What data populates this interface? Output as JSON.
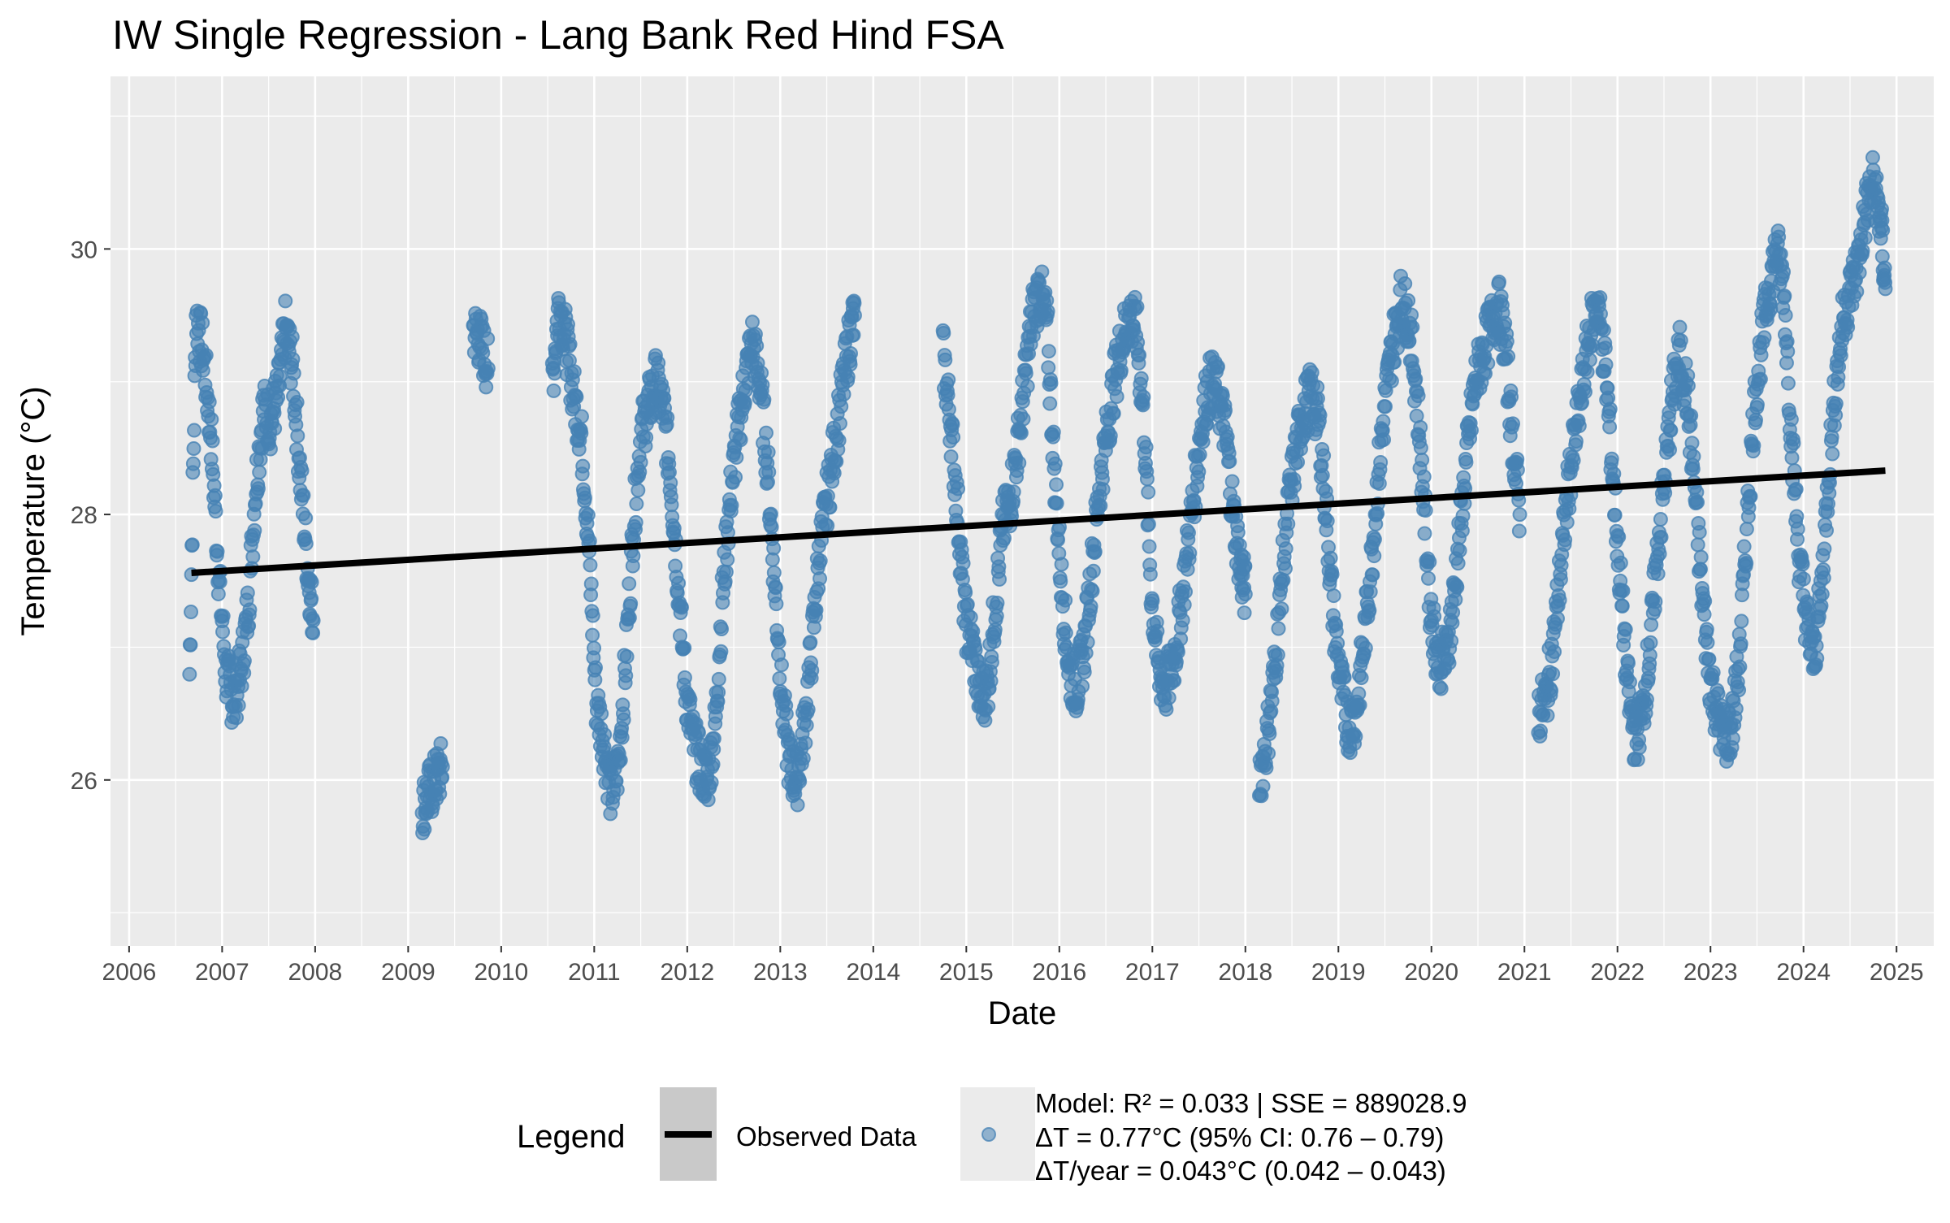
{
  "chart_data": {
    "type": "scatter",
    "title": "IW Single Regression - Lang Bank Red Hind FSA",
    "xlabel": "Date",
    "ylabel": "Temperature (°C)",
    "xlim": [
      2005.8,
      2025.4
    ],
    "ylim": [
      24.75,
      31.3
    ],
    "x_ticks": [
      "2006",
      "2007",
      "2008",
      "2009",
      "2010",
      "2011",
      "2012",
      "2013",
      "2014",
      "2015",
      "2016",
      "2017",
      "2018",
      "2019",
      "2020",
      "2021",
      "2022",
      "2023",
      "2024",
      "2025"
    ],
    "y_ticks": [
      "26",
      "28",
      "30"
    ],
    "grid": true,
    "legend_position": "bottom",
    "colors": {
      "points": "#4682B4",
      "trend": "#000000",
      "panel": "#EBEBEB",
      "grid": "#FFFFFF"
    },
    "trend_line": {
      "x": [
        2006.67,
        2024.88
      ],
      "y": [
        27.56,
        28.33
      ]
    },
    "series": [
      {
        "name": "Observed Data",
        "kind": "daily-temperature-trace",
        "segments": [
          {
            "x": [
              2006.65,
              2006.72,
              2006.8,
              2006.88,
              2006.96,
              2007.04,
              2007.12,
              2007.2,
              2007.28,
              2007.36,
              2007.44,
              2007.52,
              2007.6,
              2007.68,
              2007.76,
              2007.84,
              2007.92,
              2007.98
            ],
            "y": [
              26.8,
              29.5,
              29.2,
              28.6,
              27.6,
              26.8,
              26.6,
              26.8,
              27.3,
              28.2,
              28.8,
              28.7,
              28.9,
              29.4,
              29.1,
              28.3,
              27.6,
              27.2
            ]
          },
          {
            "x": [
              2009.15,
              2009.22,
              2009.3,
              2009.37
            ],
            "y": [
              25.8,
              25.9,
              26.0,
              26.1
            ]
          },
          {
            "x": [
              2009.7,
              2009.78,
              2009.86
            ],
            "y": [
              29.4,
              29.3,
              29.1
            ]
          },
          {
            "x": [
              2010.55,
              2010.62,
              2010.7,
              2010.78,
              2010.86,
              2010.94,
              2011.02,
              2011.1,
              2011.18,
              2011.26,
              2011.34,
              2011.42,
              2011.5,
              2011.58,
              2011.66,
              2011.74,
              2011.82,
              2011.9,
              2011.98,
              2012.06,
              2012.14,
              2012.22,
              2012.3,
              2012.38,
              2012.46,
              2012.54,
              2012.62,
              2012.7,
              2012.78,
              2012.86,
              2012.94,
              2013.02,
              2013.1,
              2013.18,
              2013.26,
              2013.34,
              2013.42,
              2013.5,
              2013.58,
              2013.66,
              2013.74,
              2013.8
            ],
            "y": [
              29.0,
              29.6,
              29.3,
              28.9,
              28.6,
              27.8,
              26.6,
              26.3,
              25.9,
              26.1,
              26.9,
              27.9,
              28.6,
              28.8,
              29.0,
              28.8,
              28.3,
              27.5,
              26.7,
              26.3,
              26.1,
              26.0,
              26.4,
              27.4,
              28.1,
              28.6,
              29.0,
              29.3,
              29.0,
              28.4,
              27.5,
              26.6,
              26.1,
              26.0,
              26.4,
              27.0,
              27.7,
              28.1,
              28.5,
              28.9,
              29.3,
              29.5
            ]
          },
          {
            "x": [
              2014.75,
              2014.83,
              2014.91,
              2014.99,
              2015.07,
              2015.15,
              2015.23,
              2015.31,
              2015.39,
              2015.47,
              2015.55,
              2015.63,
              2015.71,
              2015.79,
              2015.87,
              2015.95,
              2016.03,
              2016.11,
              2016.19,
              2016.27,
              2016.35,
              2016.43,
              2016.51,
              2016.59,
              2016.67,
              2016.75,
              2016.83,
              2016.91,
              2016.99,
              2017.07,
              2017.15,
              2017.23,
              2017.31,
              2017.39,
              2017.47,
              2017.55,
              2017.63,
              2017.71,
              2017.79,
              2017.87,
              2017.95,
              2018.0
            ],
            "y": [
              29.2,
              28.7,
              28.0,
              27.2,
              27.0,
              26.6,
              26.7,
              27.3,
              27.9,
              28.1,
              28.5,
              29.0,
              29.5,
              29.7,
              29.4,
              28.3,
              27.4,
              26.8,
              26.7,
              27.0,
              27.6,
              28.2,
              28.6,
              29.0,
              29.3,
              29.5,
              29.4,
              28.7,
              27.4,
              26.8,
              26.7,
              26.9,
              27.3,
              27.8,
              28.3,
              28.8,
              29.0,
              28.9,
              28.6,
              28.0,
              27.6,
              27.4
            ]
          },
          {
            "x": [
              2018.15,
              2018.23,
              2018.31,
              2018.39,
              2018.47,
              2018.55,
              2018.63,
              2018.71,
              2018.79,
              2018.87,
              2018.95,
              2019.03,
              2019.11,
              2019.19,
              2019.27,
              2019.35,
              2019.43,
              2019.51,
              2019.59,
              2019.67,
              2019.75,
              2019.83,
              2019.91,
              2019.99,
              2020.07,
              2020.15,
              2020.23,
              2020.31,
              2020.39,
              2020.47,
              2020.55,
              2020.63,
              2020.71,
              2020.79,
              2020.87,
              2020.95
            ],
            "y": [
              26.0,
              26.3,
              26.8,
              27.5,
              28.1,
              28.5,
              28.8,
              28.9,
              28.7,
              28.0,
              27.2,
              26.7,
              26.4,
              26.5,
              27.0,
              27.6,
              28.3,
              28.9,
              29.3,
              29.6,
              29.5,
              29.0,
              28.2,
              27.3,
              26.9,
              26.9,
              27.3,
              27.9,
              28.5,
              29.0,
              29.2,
              29.4,
              29.6,
              29.3,
              28.6,
              28.0
            ]
          },
          {
            "x": [
              2021.15,
              2021.23,
              2021.31,
              2021.39,
              2021.47,
              2021.55,
              2021.63,
              2021.71,
              2021.79,
              2021.87,
              2021.95,
              2022.03,
              2022.11,
              2022.19,
              2022.27,
              2022.35,
              2022.43,
              2022.51,
              2022.59,
              2022.67,
              2022.75,
              2022.83,
              2022.91,
              2022.99,
              2023.07,
              2023.15,
              2023.23,
              2023.31,
              2023.39,
              2023.47,
              2023.55,
              2023.63,
              2023.71,
              2023.79,
              2023.87,
              2023.95,
              2024.03,
              2024.11,
              2024.19,
              2024.27,
              2024.35,
              2024.43,
              2024.51,
              2024.59,
              2024.67,
              2024.75,
              2024.83,
              2024.88
            ],
            "y": [
              26.5,
              26.6,
              27.0,
              27.6,
              28.2,
              28.6,
              29.0,
              29.4,
              29.6,
              29.1,
              28.3,
              27.5,
              26.7,
              26.3,
              26.5,
              27.0,
              27.7,
              28.3,
              28.9,
              29.2,
              28.9,
              28.2,
              27.4,
              26.8,
              26.5,
              26.3,
              26.4,
              26.9,
              27.9,
              28.8,
              29.3,
              29.7,
              30.0,
              29.7,
              28.6,
              27.7,
              27.2,
              26.9,
              27.4,
              28.3,
              29.0,
              29.5,
              29.7,
              29.9,
              30.3,
              30.5,
              30.2,
              29.7
            ]
          }
        ],
        "jitter": 0.22
      }
    ],
    "annotations": [
      "Model: R² = 0.033 | SSE = 889028.9",
      "ΔT = 0.77°C (95% CI: 0.76 – 0.79)",
      "ΔT/year = 0.043°C (0.042 – 0.043)"
    ],
    "legend": {
      "title": "Legend",
      "line_label": "Observed Data"
    }
  }
}
